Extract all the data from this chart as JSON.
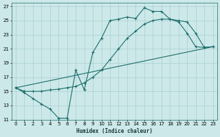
{
  "xlabel": "Humidex (Indice chaleur)",
  "bg_color": "#cce8e8",
  "grid_color": "#aacfcf",
  "line_color": "#1a6b6b",
  "xlim": [
    -0.5,
    23.5
  ],
  "ylim": [
    11,
    27.5
  ],
  "xticks": [
    0,
    1,
    2,
    3,
    4,
    5,
    6,
    7,
    8,
    9,
    10,
    11,
    12,
    13,
    14,
    15,
    16,
    17,
    18,
    19,
    20,
    21,
    22,
    23
  ],
  "yticks": [
    11,
    13,
    15,
    17,
    19,
    21,
    23,
    25,
    27
  ],
  "series1_x": [
    0,
    1,
    2,
    3,
    4,
    5,
    6,
    7,
    8,
    9,
    10,
    11,
    12,
    13,
    14,
    15,
    16,
    17,
    18,
    19,
    20,
    21,
    22,
    23
  ],
  "series1_y": [
    15.5,
    14.8,
    14.0,
    13.2,
    12.5,
    11.2,
    11.2,
    18.0,
    15.2,
    20.5,
    22.5,
    25.0,
    25.2,
    25.5,
    25.3,
    26.8,
    26.3,
    26.3,
    25.2,
    24.8,
    23.2,
    21.3,
    21.2,
    21.3
  ],
  "series2_x": [
    0,
    1,
    2,
    3,
    4,
    5,
    6,
    7,
    8,
    9,
    10,
    11,
    12,
    13,
    14,
    15,
    16,
    17,
    18,
    19,
    20,
    21,
    22,
    23
  ],
  "series2_y": [
    15.5,
    15.0,
    15.0,
    15.0,
    15.2,
    15.3,
    15.5,
    15.7,
    16.2,
    17.0,
    18.0,
    19.5,
    21.0,
    22.5,
    23.5,
    24.5,
    25.0,
    25.2,
    25.2,
    25.0,
    24.8,
    23.2,
    21.2,
    21.3
  ],
  "series3_x": [
    0,
    23
  ],
  "series3_y": [
    15.5,
    21.3
  ]
}
